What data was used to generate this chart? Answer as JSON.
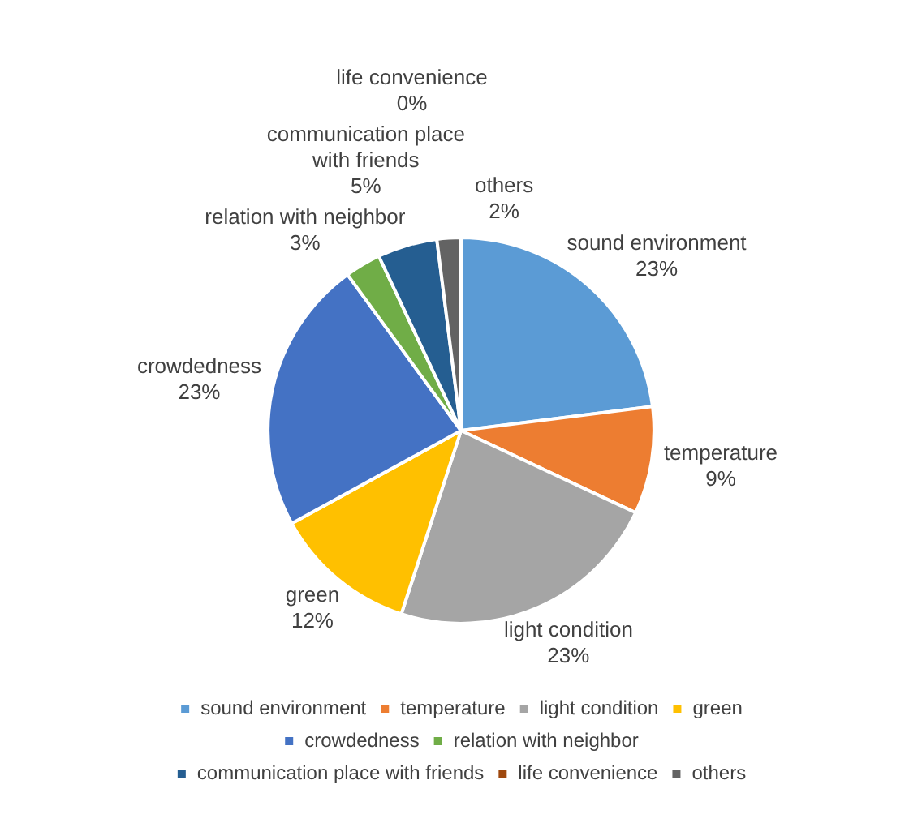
{
  "chart_data": {
    "type": "pie",
    "categories": [
      "sound environment",
      "temperature",
      "light condition",
      "green",
      "crowdedness",
      "relation with neighbor",
      "communication place with friends",
      "life convenience",
      "others"
    ],
    "values": [
      23,
      9,
      23,
      12,
      23,
      3,
      5,
      0,
      2
    ],
    "colors": [
      "#5b9bd5",
      "#ed7d31",
      "#a5a5a5",
      "#ffc000",
      "#4472c4",
      "#70ad47",
      "#255e91",
      "#9e480e",
      "#636363"
    ],
    "value_labels": [
      "23%",
      "9%",
      "23%",
      "12%",
      "23%",
      "3%",
      "5%",
      "0%",
      "2%"
    ],
    "legend": "bottom"
  }
}
